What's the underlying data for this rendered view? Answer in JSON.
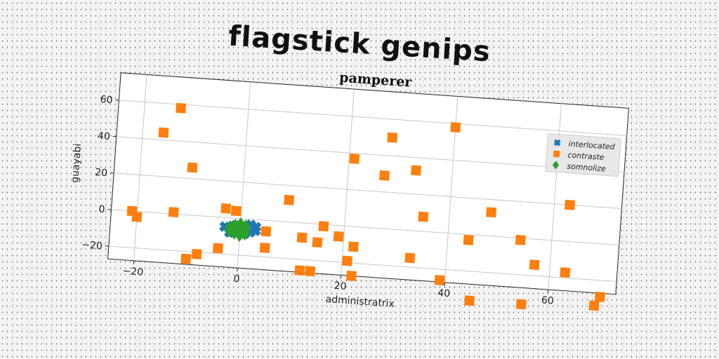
{
  "super_title": "flagstick genips",
  "chart_data": {
    "type": "scatter",
    "title": "pamperer",
    "xlabel": "administratrix",
    "ylabel": "guayabi",
    "xlim": [
      -25,
      73
    ],
    "ylim": [
      -27,
      75
    ],
    "xticks": [
      -20,
      0,
      20,
      40,
      60
    ],
    "yticks": [
      -20,
      0,
      20,
      40,
      60
    ],
    "grid": true,
    "legend_position": "top-right",
    "series": [
      {
        "name": "interlocated",
        "marker": "x",
        "color": "#1f77b4",
        "points": [
          [
            -3,
            -5
          ],
          [
            -2,
            -6
          ],
          [
            -1,
            -4
          ],
          [
            0,
            -7
          ],
          [
            1,
            -5
          ],
          [
            2,
            -3
          ],
          [
            3,
            -6
          ],
          [
            -2,
            -8
          ],
          [
            1,
            -8
          ],
          [
            0,
            -4
          ],
          [
            -1,
            -7
          ],
          [
            2,
            -7
          ],
          [
            3,
            -4
          ]
        ]
      },
      {
        "name": "contraste",
        "marker": "s",
        "color": "#ff7f0e",
        "points": [
          [
            -13,
            58
          ],
          [
            -16,
            44
          ],
          [
            -10,
            26
          ],
          [
            -13,
            1
          ],
          [
            -21,
            0
          ],
          [
            -20,
            -3
          ],
          [
            -10,
            -24
          ],
          [
            -8,
            -21
          ],
          [
            -4,
            -17
          ],
          [
            -3,
            5
          ],
          [
            -1,
            4
          ],
          [
            5,
            -6
          ],
          [
            5,
            -15
          ],
          [
            9,
            12
          ],
          [
            12,
            -8
          ],
          [
            12,
            -26
          ],
          [
            14,
            -26
          ],
          [
            15,
            -10
          ],
          [
            16,
            -1
          ],
          [
            19,
            -6
          ],
          [
            21,
            -19
          ],
          [
            22,
            -11
          ],
          [
            22,
            -27
          ],
          [
            21,
            37
          ],
          [
            27,
            29
          ],
          [
            28,
            50
          ],
          [
            33,
            33
          ],
          [
            35,
            8
          ],
          [
            33,
            -15
          ],
          [
            40,
            58
          ],
          [
            39,
            -26
          ],
          [
            44,
            -3
          ],
          [
            45,
            -36
          ],
          [
            48,
            13
          ],
          [
            54,
            -1
          ],
          [
            55,
            -36
          ],
          [
            57,
            -14
          ],
          [
            63,
            20
          ],
          [
            63,
            -17
          ],
          [
            69,
            -34
          ],
          [
            70,
            -29
          ]
        ]
      },
      {
        "name": "somnolize",
        "marker": "d",
        "color": "#2ca02c",
        "points": [
          [
            -2,
            -5
          ],
          [
            -1,
            -6
          ],
          [
            0,
            -5
          ],
          [
            -1,
            -8
          ],
          [
            0,
            -7
          ],
          [
            1,
            -6
          ],
          [
            -2,
            -7
          ],
          [
            0,
            -9
          ],
          [
            1,
            -8
          ],
          [
            -1,
            -4
          ],
          [
            0,
            -3
          ],
          [
            1,
            -4
          ]
        ]
      }
    ]
  }
}
